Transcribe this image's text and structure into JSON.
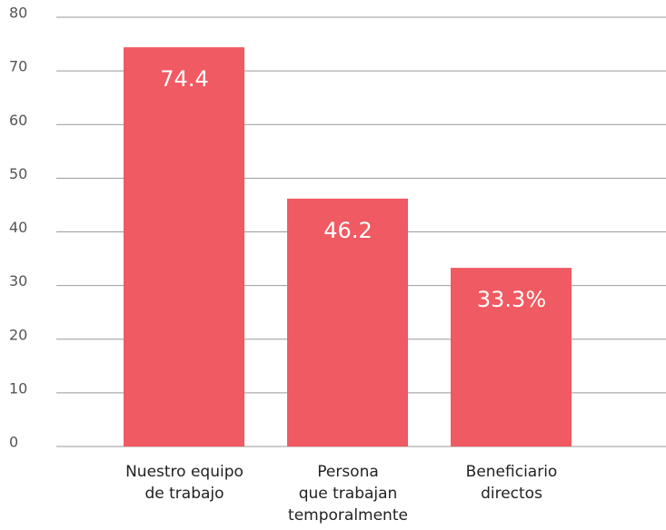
{
  "chart_data": {
    "type": "bar",
    "categories": [
      "Nuestro equipo\nde trabajo",
      "Persona\nque trabajan\ntemporalmente",
      "Beneficiario\ndirectos"
    ],
    "values": [
      74.4,
      46.2,
      33.3
    ],
    "value_labels": [
      "74.4",
      "46.2",
      "33.3%"
    ],
    "color": "#f05a62",
    "ylim": [
      0,
      80
    ],
    "yticks": [
      0,
      10,
      20,
      30,
      40,
      50,
      60,
      70,
      80
    ],
    "grid": true
  }
}
